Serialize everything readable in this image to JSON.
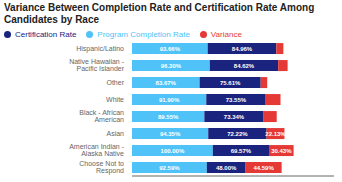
{
  "chart_data": {
    "type": "bar",
    "title": "Variance Between Completion Rate and Certification Rate Among Candidates by Race",
    "orientation": "horizontal",
    "stacked": true,
    "categories": [
      "Hispanic/Latino",
      "Native Hawaiian - Pacific Islander",
      "Other",
      "White",
      "Black - African American",
      "Asian",
      "American Indian - Alaska Native",
      "Choose Not to Respond"
    ],
    "series": [
      {
        "name": "Program Completion Rate",
        "color": "#4FC3F7",
        "values": [
          93.66,
          96.3,
          83.67,
          91.9,
          89.55,
          94.35,
          100.0,
          92.59
        ],
        "value_labels": [
          "93.66%",
          "96.30%",
          "83.67%",
          "91.90%",
          "89.55%",
          "94.35%",
          "100.00%",
          "92.59%"
        ]
      },
      {
        "name": "Certification Rate",
        "color": "#1A237E",
        "values": [
          84.96,
          84.62,
          75.61,
          73.55,
          73.34,
          72.22,
          69.57,
          48.0
        ],
        "value_labels": [
          "84.96%",
          "84.62%",
          "75.61%",
          "73.55%",
          "73.34%",
          "72.22%",
          "69.57%",
          "48.00%"
        ]
      },
      {
        "name": "Variance",
        "color": "#E53935",
        "values": [
          8.7,
          11.68,
          8.06,
          18.35,
          16.21,
          22.13,
          30.43,
          44.59
        ],
        "value_labels": [
          null,
          null,
          null,
          null,
          null,
          "22.13%",
          "30.43%",
          "44.59%"
        ]
      }
    ],
    "xlim": [
      0,
      250
    ],
    "tick_labels": "y",
    "grid": false,
    "legend": "upper left",
    "data_labels": true
  }
}
